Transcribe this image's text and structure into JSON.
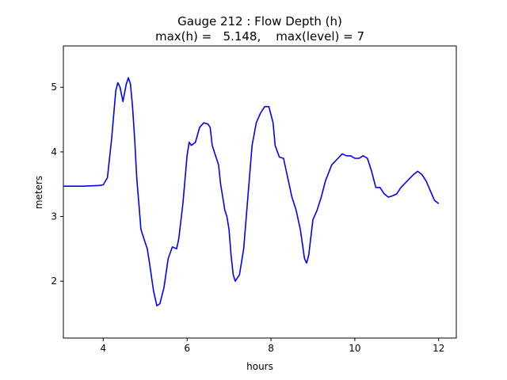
{
  "chart_data": {
    "type": "line",
    "title": "Gauge 212 : Flow Depth (h)",
    "subtitle": "max(h) =   5.148,    max(level) = 7",
    "xlabel": "hours",
    "ylabel": "meters",
    "xlim": [
      3.05,
      12.42
    ],
    "ylim": [
      1.12,
      5.64
    ],
    "xticks": [
      4,
      6,
      8,
      10,
      12
    ],
    "yticks": [
      2,
      3,
      4,
      5
    ],
    "grid": false,
    "series": [
      {
        "color": "#0000ff",
        "x": [
          3.0,
          3.5,
          3.9,
          4.0,
          4.1,
          4.2,
          4.3,
          4.35,
          4.4,
          4.47,
          4.55,
          4.6,
          4.65,
          4.7,
          4.75,
          4.8,
          4.85,
          4.9,
          5.0,
          5.05,
          5.1,
          5.2,
          5.28,
          5.35,
          5.45,
          5.55,
          5.65,
          5.75,
          5.8,
          5.9,
          6.0,
          6.05,
          6.1,
          6.2,
          6.3,
          6.4,
          6.5,
          6.55,
          6.6,
          6.7,
          6.75,
          6.8,
          6.85,
          6.9,
          6.95,
          7.0,
          7.05,
          7.1,
          7.15,
          7.25,
          7.35,
          7.45,
          7.55,
          7.65,
          7.75,
          7.85,
          7.95,
          8.05,
          8.1,
          8.2,
          8.3,
          8.4,
          8.5,
          8.6,
          8.7,
          8.8,
          8.85,
          8.9,
          9.0,
          9.1,
          9.2,
          9.3,
          9.45,
          9.6,
          9.7,
          9.8,
          9.9,
          10.0,
          10.1,
          10.2,
          10.3,
          10.4,
          10.5,
          10.6,
          10.7,
          10.8,
          10.9,
          11.0,
          11.1,
          11.25,
          11.4,
          11.5,
          11.6,
          11.7,
          11.8,
          11.9,
          12.0
        ],
        "y": [
          3.47,
          3.47,
          3.48,
          3.49,
          3.6,
          4.2,
          4.95,
          5.07,
          5.0,
          4.78,
          5.05,
          5.148,
          5.05,
          4.7,
          4.2,
          3.6,
          3.2,
          2.8,
          2.6,
          2.5,
          2.3,
          1.85,
          1.62,
          1.65,
          1.9,
          2.35,
          2.53,
          2.5,
          2.65,
          3.2,
          3.95,
          4.15,
          4.1,
          4.15,
          4.38,
          4.45,
          4.43,
          4.38,
          4.1,
          3.9,
          3.8,
          3.5,
          3.3,
          3.1,
          3.0,
          2.8,
          2.4,
          2.1,
          2.0,
          2.1,
          2.5,
          3.3,
          4.1,
          4.45,
          4.6,
          4.7,
          4.7,
          4.45,
          4.1,
          3.92,
          3.9,
          3.6,
          3.3,
          3.1,
          2.8,
          2.35,
          2.28,
          2.4,
          2.95,
          3.1,
          3.3,
          3.55,
          3.8,
          3.9,
          3.97,
          3.94,
          3.94,
          3.9,
          3.9,
          3.94,
          3.9,
          3.7,
          3.45,
          3.45,
          3.35,
          3.3,
          3.32,
          3.35,
          3.45,
          3.55,
          3.65,
          3.7,
          3.65,
          3.55,
          3.4,
          3.25,
          3.2
        ]
      }
    ]
  }
}
